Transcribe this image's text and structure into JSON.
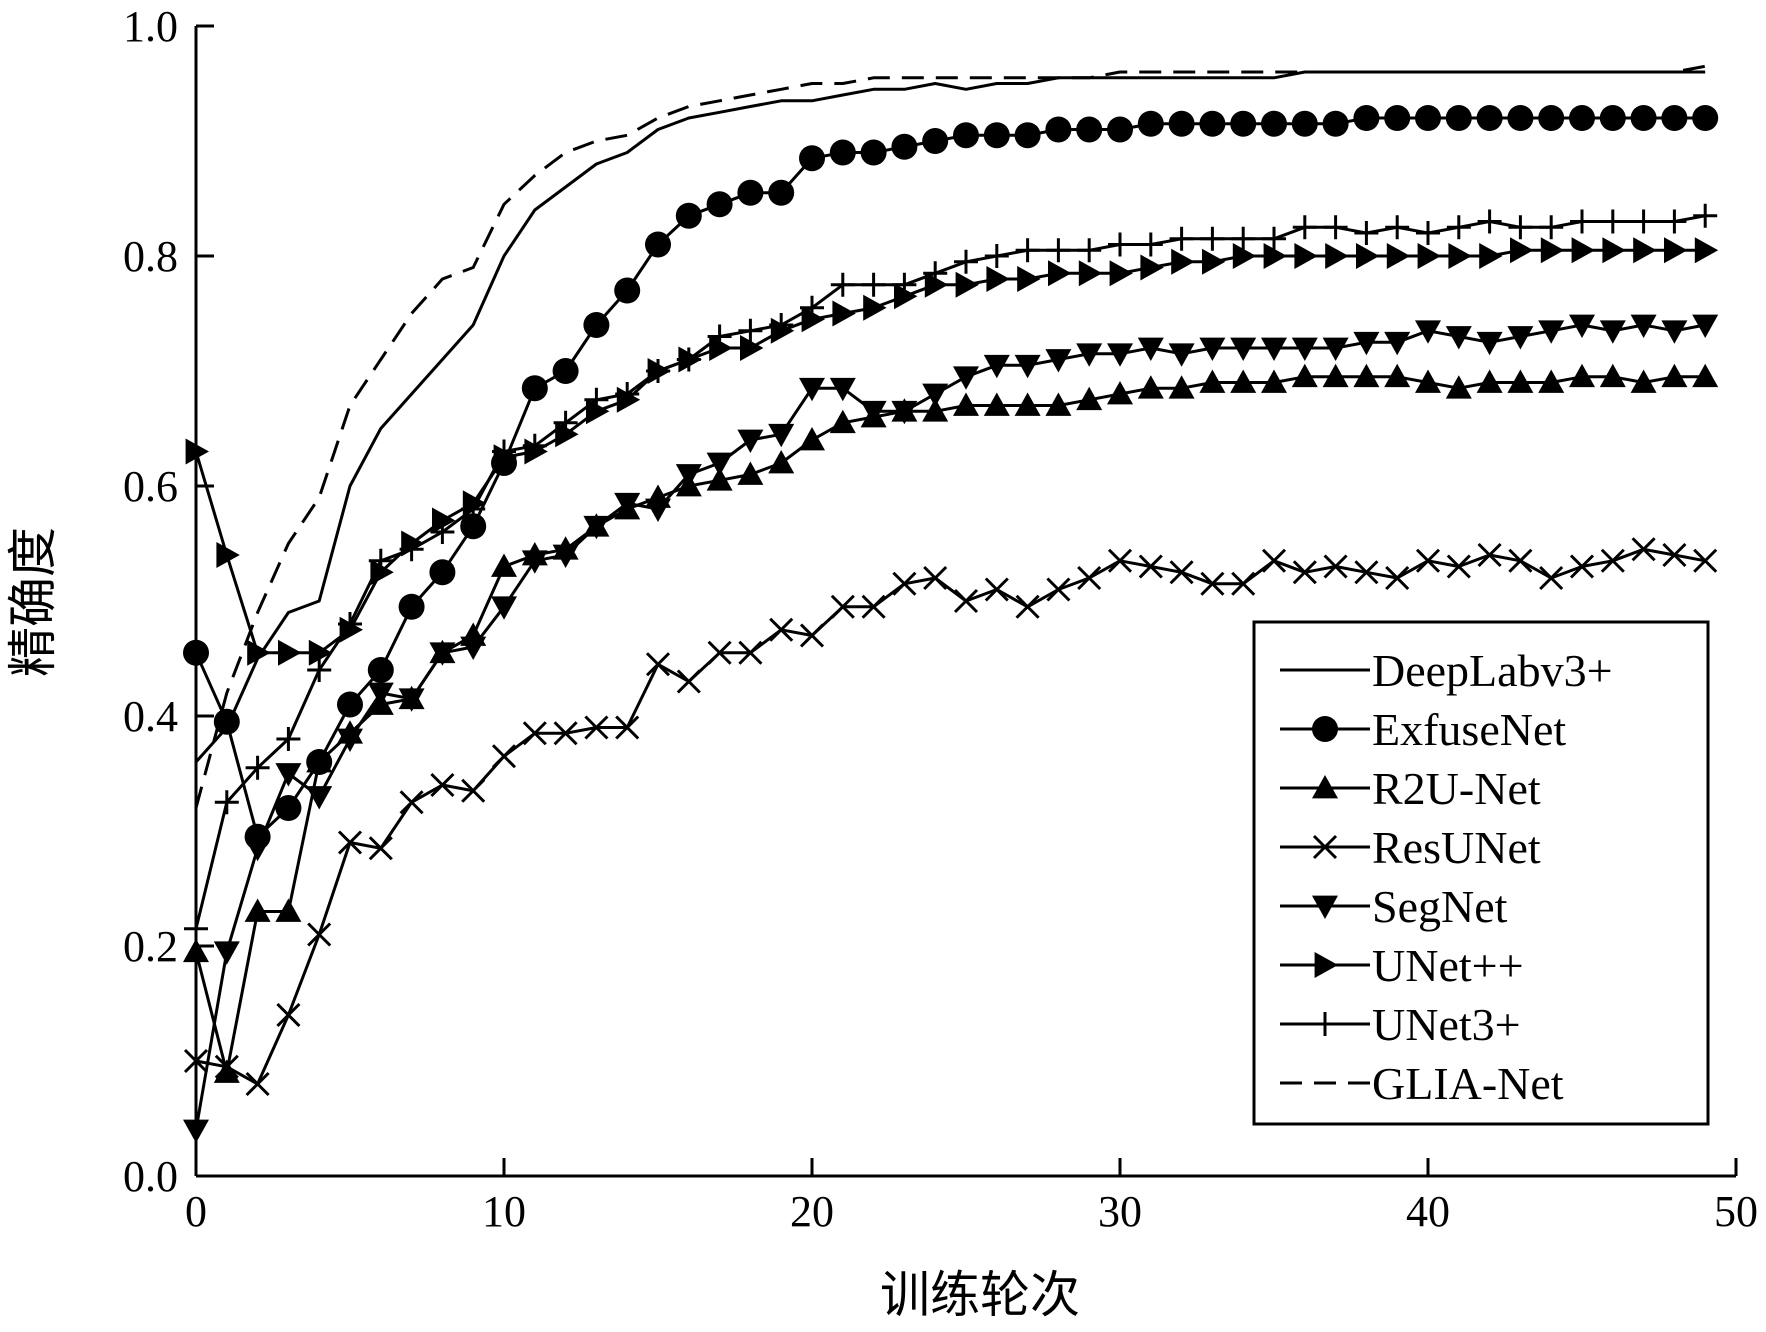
{
  "chart_data": {
    "type": "line",
    "xlabel": "训练轮次",
    "ylabel": "精确度",
    "xlim": [
      0,
      50
    ],
    "ylim": [
      0.0,
      1.0
    ],
    "xticks": [
      0,
      10,
      20,
      30,
      40,
      50
    ],
    "yticks": [
      0.0,
      0.2,
      0.4,
      0.6,
      0.8,
      1.0
    ],
    "xtick_labels": [
      "0",
      "10",
      "20",
      "30",
      "40",
      "50"
    ],
    "ytick_labels": [
      "0.0",
      "0.2",
      "0.4",
      "0.6",
      "0.8",
      "1.0"
    ],
    "grid": false,
    "legend_position": "bottom-right",
    "x": [
      0,
      1,
      2,
      3,
      4,
      5,
      6,
      7,
      8,
      9,
      10,
      11,
      12,
      13,
      14,
      15,
      16,
      17,
      18,
      19,
      20,
      21,
      22,
      23,
      24,
      25,
      26,
      27,
      28,
      29,
      30,
      31,
      32,
      33,
      34,
      35,
      36,
      37,
      38,
      39,
      40,
      41,
      42,
      43,
      44,
      45,
      46,
      47,
      48,
      49
    ],
    "series": [
      {
        "name": "DeepLabv3+",
        "marker": "none",
        "dash": "solid",
        "values": [
          0.36,
          0.39,
          0.45,
          0.49,
          0.5,
          0.6,
          0.65,
          0.68,
          0.71,
          0.74,
          0.8,
          0.84,
          0.86,
          0.88,
          0.89,
          0.91,
          0.92,
          0.925,
          0.93,
          0.935,
          0.935,
          0.94,
          0.945,
          0.945,
          0.95,
          0.945,
          0.95,
          0.95,
          0.955,
          0.955,
          0.955,
          0.955,
          0.955,
          0.955,
          0.955,
          0.955,
          0.96,
          0.96,
          0.96,
          0.96,
          0.96,
          0.96,
          0.96,
          0.96,
          0.96,
          0.96,
          0.96,
          0.96,
          0.96,
          0.96
        ]
      },
      {
        "name": "ExfuseNet",
        "marker": "circle",
        "dash": "solid",
        "values": [
          0.455,
          0.395,
          0.295,
          0.32,
          0.36,
          0.41,
          0.44,
          0.495,
          0.525,
          0.565,
          0.62,
          0.685,
          0.7,
          0.74,
          0.77,
          0.81,
          0.835,
          0.845,
          0.855,
          0.855,
          0.885,
          0.89,
          0.89,
          0.895,
          0.9,
          0.905,
          0.905,
          0.905,
          0.91,
          0.91,
          0.91,
          0.915,
          0.915,
          0.915,
          0.915,
          0.915,
          0.915,
          0.915,
          0.92,
          0.92,
          0.92,
          0.92,
          0.92,
          0.92,
          0.92,
          0.92,
          0.92,
          0.92,
          0.92,
          0.92
        ]
      },
      {
        "name": "R2U-Net",
        "marker": "triangle-up",
        "dash": "solid",
        "values": [
          0.195,
          0.09,
          0.23,
          0.23,
          0.36,
          0.385,
          0.41,
          0.415,
          0.455,
          0.47,
          0.53,
          0.54,
          0.545,
          0.565,
          0.58,
          0.59,
          0.6,
          0.605,
          0.61,
          0.62,
          0.64,
          0.655,
          0.66,
          0.665,
          0.665,
          0.67,
          0.67,
          0.67,
          0.67,
          0.675,
          0.68,
          0.685,
          0.685,
          0.69,
          0.69,
          0.69,
          0.695,
          0.695,
          0.695,
          0.695,
          0.69,
          0.685,
          0.69,
          0.69,
          0.69,
          0.695,
          0.695,
          0.69,
          0.695,
          0.695
        ]
      },
      {
        "name": "ResUNet",
        "marker": "x",
        "dash": "solid",
        "values": [
          0.1,
          0.095,
          0.08,
          0.14,
          0.21,
          0.29,
          0.285,
          0.325,
          0.34,
          0.335,
          0.365,
          0.385,
          0.385,
          0.39,
          0.39,
          0.445,
          0.43,
          0.455,
          0.455,
          0.475,
          0.47,
          0.495,
          0.495,
          0.515,
          0.52,
          0.5,
          0.51,
          0.495,
          0.51,
          0.52,
          0.535,
          0.53,
          0.525,
          0.515,
          0.515,
          0.535,
          0.525,
          0.53,
          0.525,
          0.52,
          0.535,
          0.53,
          0.54,
          0.535,
          0.52,
          0.53,
          0.535,
          0.545,
          0.54,
          0.535
        ]
      },
      {
        "name": "SegNet",
        "marker": "triangle-down",
        "dash": "solid",
        "values": [
          0.04,
          0.195,
          0.285,
          0.35,
          0.33,
          0.38,
          0.42,
          0.415,
          0.455,
          0.46,
          0.495,
          0.535,
          0.54,
          0.565,
          0.585,
          0.58,
          0.61,
          0.62,
          0.64,
          0.645,
          0.685,
          0.685,
          0.665,
          0.665,
          0.68,
          0.695,
          0.705,
          0.705,
          0.71,
          0.715,
          0.715,
          0.72,
          0.715,
          0.72,
          0.72,
          0.72,
          0.72,
          0.72,
          0.725,
          0.725,
          0.735,
          0.73,
          0.725,
          0.73,
          0.735,
          0.74,
          0.735,
          0.74,
          0.735,
          0.74
        ]
      },
      {
        "name": "UNet++",
        "marker": "triangle-right",
        "dash": "solid",
        "values": [
          0.63,
          0.54,
          0.455,
          0.455,
          0.455,
          0.475,
          0.525,
          0.55,
          0.57,
          0.585,
          0.625,
          0.63,
          0.645,
          0.665,
          0.675,
          0.7,
          0.71,
          0.72,
          0.72,
          0.735,
          0.745,
          0.75,
          0.755,
          0.765,
          0.775,
          0.775,
          0.78,
          0.78,
          0.785,
          0.785,
          0.785,
          0.79,
          0.795,
          0.795,
          0.8,
          0.8,
          0.8,
          0.8,
          0.8,
          0.8,
          0.8,
          0.8,
          0.8,
          0.805,
          0.805,
          0.805,
          0.805,
          0.805,
          0.805,
          0.805
        ]
      },
      {
        "name": "UNet3+",
        "marker": "plus",
        "dash": "solid",
        "values": [
          0.215,
          0.325,
          0.355,
          0.38,
          0.44,
          0.48,
          0.535,
          0.545,
          0.56,
          0.58,
          0.63,
          0.635,
          0.655,
          0.675,
          0.68,
          0.7,
          0.71,
          0.73,
          0.735,
          0.74,
          0.755,
          0.775,
          0.775,
          0.775,
          0.785,
          0.795,
          0.8,
          0.805,
          0.805,
          0.805,
          0.81,
          0.81,
          0.815,
          0.815,
          0.815,
          0.815,
          0.825,
          0.825,
          0.82,
          0.825,
          0.82,
          0.825,
          0.83,
          0.825,
          0.825,
          0.83,
          0.83,
          0.83,
          0.83,
          0.835
        ]
      },
      {
        "name": "GLIA-Net",
        "marker": "none",
        "dash": "dashed",
        "values": [
          0.32,
          0.42,
          0.49,
          0.55,
          0.59,
          0.67,
          0.71,
          0.75,
          0.78,
          0.79,
          0.845,
          0.87,
          0.89,
          0.9,
          0.905,
          0.92,
          0.93,
          0.935,
          0.94,
          0.945,
          0.95,
          0.95,
          0.955,
          0.955,
          0.955,
          0.955,
          0.955,
          0.955,
          0.955,
          0.955,
          0.96,
          0.96,
          0.96,
          0.96,
          0.96,
          0.96,
          0.96,
          0.96,
          0.96,
          0.96,
          0.96,
          0.96,
          0.96,
          0.96,
          0.96,
          0.96,
          0.96,
          0.96,
          0.96,
          0.965
        ]
      }
    ]
  }
}
